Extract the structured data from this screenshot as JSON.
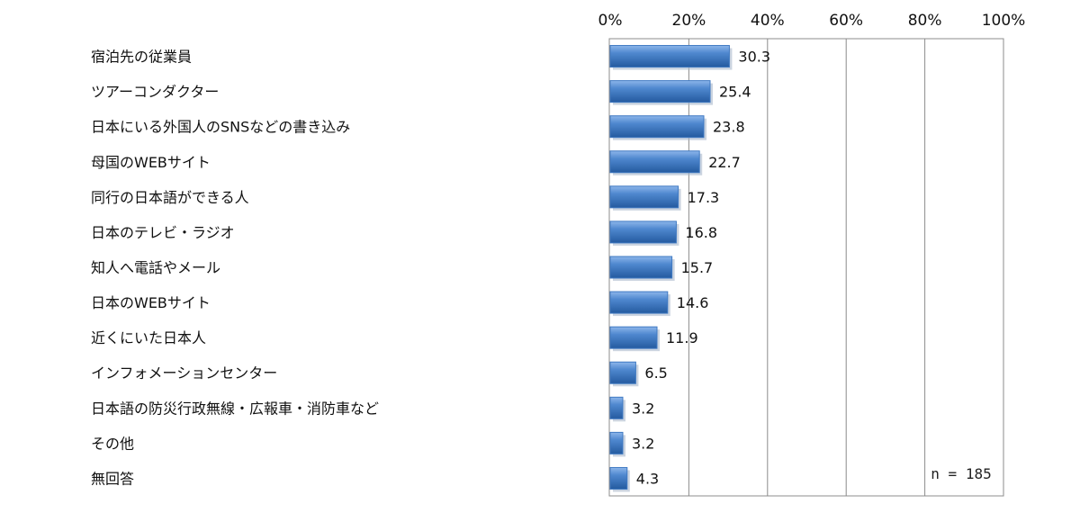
{
  "chart_data": {
    "type": "bar",
    "orientation": "horizontal",
    "categories": [
      "宿泊先の従業員",
      "ツアーコンダクター",
      "日本にいる外国人のSNSなどの書き込み",
      "母国のWEBサイト",
      "同行の日本語ができる人",
      "日本のテレビ・ラジオ",
      "知人へ電話やメール",
      "日本のWEBサイト",
      "近くにいた日本人",
      "インフォメーションセンター",
      "日本語の防災行政無線・広報車・消防車など",
      "その他",
      "無回答"
    ],
    "values": [
      30.3,
      25.4,
      23.8,
      22.7,
      17.3,
      16.8,
      15.7,
      14.6,
      11.9,
      6.5,
      3.2,
      3.2,
      4.3
    ],
    "value_labels": [
      "30.3",
      "25.4",
      "23.8",
      "22.7",
      "17.3",
      "16.8",
      "15.7",
      "14.6",
      "11.9",
      "6.5",
      "3.2",
      "3.2",
      "4.3"
    ],
    "xlim": [
      0,
      100
    ],
    "x_ticks": [
      0,
      20,
      40,
      60,
      80,
      100
    ],
    "x_tick_labels": [
      "0%",
      "20%",
      "40%",
      "60%",
      "80%",
      "100%"
    ],
    "x_axis_position": "top",
    "grid": true,
    "bar_color": "#3f79c2",
    "annotation": "n = 185"
  }
}
